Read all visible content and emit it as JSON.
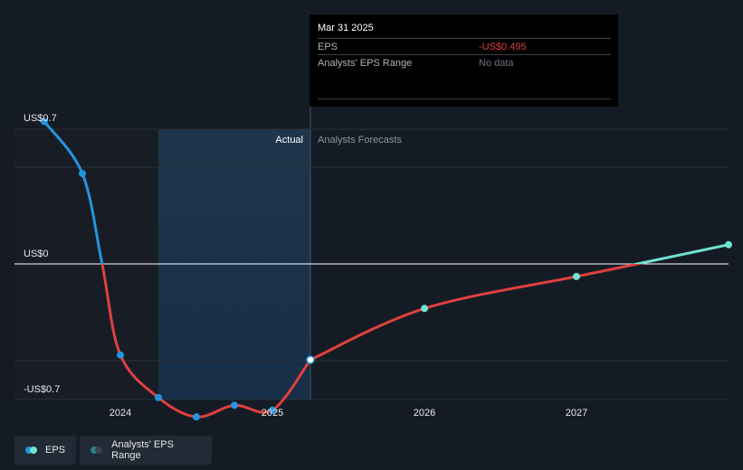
{
  "chart_data": {
    "type": "line",
    "y_axis": {
      "min": -0.7,
      "max": 0.7,
      "labels": [
        {
          "value": 0.7,
          "text": "US$0.7"
        },
        {
          "value": 0,
          "text": "US$0"
        },
        {
          "value": -0.7,
          "text": "-US$0.7"
        }
      ]
    },
    "x_axis": {
      "ticks": [
        {
          "value": 2024,
          "text": "2024"
        },
        {
          "value": 2025,
          "text": "2025"
        },
        {
          "value": 2026,
          "text": "2026"
        },
        {
          "value": 2027,
          "text": "2027"
        }
      ]
    },
    "regions": {
      "actual_label": "Actual",
      "forecast_label": "Analysts Forecasts",
      "highlight_start": 2024.25,
      "divider": 2025.25
    },
    "series": [
      {
        "name": "EPS",
        "segment": "actual",
        "points": [
          {
            "x": 2023.5,
            "y": 0.74
          },
          {
            "x": 2023.75,
            "y": 0.47
          },
          {
            "x": 2023.88,
            "y": 0.0
          },
          {
            "x": 2024.0,
            "y": -0.47
          },
          {
            "x": 2024.25,
            "y": -0.69
          },
          {
            "x": 2024.5,
            "y": -0.79
          },
          {
            "x": 2024.75,
            "y": -0.73
          },
          {
            "x": 2025.0,
            "y": -0.755
          },
          {
            "x": 2025.25,
            "y": -0.495
          }
        ]
      },
      {
        "name": "EPS forecast",
        "segment": "forecast",
        "points": [
          {
            "x": 2025.25,
            "y": -0.495
          },
          {
            "x": 2026.0,
            "y": -0.23
          },
          {
            "x": 2027.0,
            "y": -0.065
          },
          {
            "x": 2027.4,
            "y": 0.0
          },
          {
            "x": 2028.0,
            "y": 0.1
          }
        ]
      }
    ],
    "markers": [
      {
        "x": 2023.5,
        "y": 0.74,
        "kind": "actual"
      },
      {
        "x": 2023.75,
        "y": 0.47,
        "kind": "actual"
      },
      {
        "x": 2024.0,
        "y": -0.47,
        "kind": "actual"
      },
      {
        "x": 2024.25,
        "y": -0.69,
        "kind": "actual"
      },
      {
        "x": 2024.5,
        "y": -0.79,
        "kind": "actual"
      },
      {
        "x": 2024.75,
        "y": -0.73,
        "kind": "actual"
      },
      {
        "x": 2025.0,
        "y": -0.755,
        "kind": "actual"
      },
      {
        "x": 2025.25,
        "y": -0.495,
        "kind": "selected"
      },
      {
        "x": 2026.0,
        "y": -0.23,
        "kind": "forecast"
      },
      {
        "x": 2027.0,
        "y": -0.065,
        "kind": "forecast"
      },
      {
        "x": 2028.0,
        "y": 0.1,
        "kind": "forecast"
      }
    ],
    "colors": {
      "positive": "#2394df",
      "negative": "#e0403e",
      "forecast_positive": "#6fe3d0",
      "selected_fill": "#ffffff",
      "axis": "#ffffff",
      "grid": "#2a313b"
    }
  },
  "tooltip": {
    "date": "Mar 31 2025",
    "rows": [
      {
        "label": "EPS",
        "value": "-US$0.495",
        "color": "#e0403e"
      },
      {
        "label": "Analysts' EPS Range",
        "value": "No data",
        "color": "#6b7280"
      }
    ]
  },
  "legend": {
    "items": [
      {
        "label": "EPS",
        "dot1": "#2394df",
        "dot2": "#6fe3d0"
      },
      {
        "label": "Analysts' EPS Range",
        "dot1": "#2f7f8a",
        "dot2": "#3a4550"
      }
    ]
  }
}
